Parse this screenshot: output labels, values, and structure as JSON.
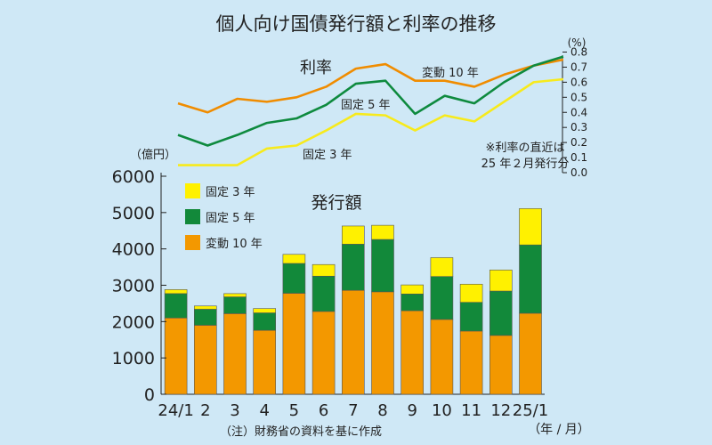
{
  "title": "個人向け国債発行額と利率の推移",
  "note": "（注）財務省の資料を基に作成",
  "chart_data": [
    {
      "type": "line",
      "title": "利率",
      "y_unit": "(%)",
      "ylim": [
        0,
        0.8
      ],
      "yticks": [
        "0.8",
        "0.7",
        "0.6",
        "0.5",
        "0.4",
        "0.3",
        "0.2",
        "0.1",
        "0.0"
      ],
      "annotation_lines": [
        "※利率の直近は",
        "25 年２月発行分"
      ],
      "series": [
        {
          "name": "変動 10 年",
          "color": "#f08c00",
          "values": [
            0.46,
            0.4,
            0.49,
            0.47,
            0.5,
            0.57,
            0.69,
            0.72,
            0.61,
            0.61,
            0.57,
            0.65,
            0.71,
            0.75
          ]
        },
        {
          "name": "固定 5 年",
          "color": "#0e8a3e",
          "values": [
            0.25,
            0.18,
            0.25,
            0.33,
            0.36,
            0.45,
            0.59,
            0.61,
            0.39,
            0.51,
            0.46,
            0.6,
            0.71,
            0.77
          ]
        },
        {
          "name": "固定 3 年",
          "color": "#f7ea1c",
          "values": [
            0.05,
            0.05,
            0.05,
            0.16,
            0.18,
            0.28,
            0.39,
            0.38,
            0.28,
            0.38,
            0.34,
            0.47,
            0.6,
            0.62
          ]
        }
      ]
    },
    {
      "type": "bar",
      "stacked": true,
      "title": "発行額",
      "y_unit": "（億円）",
      "ylim": [
        0,
        6000
      ],
      "yticks": [
        "6000",
        "5000",
        "4000",
        "3000",
        "2000",
        "1000",
        "0"
      ],
      "categories": [
        "24/1",
        "2",
        "3",
        "4",
        "5",
        "6",
        "7",
        "8",
        "9",
        "10",
        "11",
        "12",
        "25/1"
      ],
      "x_unit": "（年 / 月）",
      "legend_position": "top-left",
      "series": [
        {
          "name": "変動 10 年",
          "color": "#f39800",
          "values": [
            2100,
            1900,
            2220,
            1760,
            2780,
            2280,
            2860,
            2820,
            2300,
            2060,
            1740,
            1620,
            2230
          ]
        },
        {
          "name": "固定 5 年",
          "color": "#12893a",
          "values": [
            670,
            440,
            460,
            480,
            820,
            970,
            1270,
            1440,
            460,
            1180,
            790,
            1220,
            1880
          ]
        },
        {
          "name": "固定 3 年",
          "color": "#fff100",
          "values": [
            110,
            90,
            90,
            120,
            250,
            320,
            500,
            390,
            250,
            520,
            500,
            580,
            1000
          ]
        }
      ]
    }
  ]
}
